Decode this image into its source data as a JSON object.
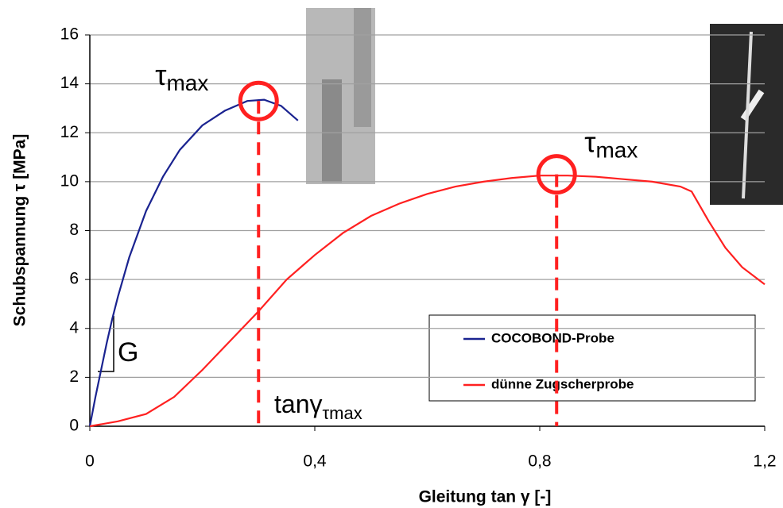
{
  "chart_data": {
    "type": "line",
    "xlabel": "Gleitung tan γ [-]",
    "ylabel": "Schubspannung τ [MPa]",
    "xlim": [
      0,
      1.2
    ],
    "xticks": [
      0,
      {
        "value": 0.4,
        "label": "0,4"
      },
      {
        "value": 0.8,
        "label": "0,8"
      },
      {
        "value": 1.2,
        "label": "1,2"
      }
    ],
    "ylim": [
      0,
      16
    ],
    "yticks": [
      0,
      2,
      4,
      6,
      8,
      10,
      12,
      14,
      16
    ],
    "grid": true,
    "series": [
      {
        "name": "COCOBOND-Probe",
        "color": "#1a2390",
        "x": [
          0,
          0.01,
          0.02,
          0.03,
          0.04,
          0.05,
          0.07,
          0.1,
          0.13,
          0.16,
          0.2,
          0.24,
          0.28,
          0.31,
          0.34,
          0.37
        ],
        "values": [
          0,
          1.2,
          2.3,
          3.4,
          4.4,
          5.3,
          6.9,
          8.8,
          10.2,
          11.3,
          12.3,
          12.9,
          13.3,
          13.35,
          13.1,
          12.5
        ]
      },
      {
        "name": "dünne Zugscherprobe",
        "color": "#ff2020",
        "x": [
          0,
          0.05,
          0.1,
          0.15,
          0.2,
          0.25,
          0.3,
          0.35,
          0.4,
          0.45,
          0.5,
          0.55,
          0.6,
          0.65,
          0.7,
          0.75,
          0.8,
          0.85,
          0.9,
          0.95,
          1.0,
          1.05,
          1.07,
          1.1,
          1.13,
          1.16,
          1.2
        ],
        "values": [
          0,
          0.2,
          0.5,
          1.2,
          2.3,
          3.5,
          4.7,
          6.0,
          7.0,
          7.9,
          8.6,
          9.1,
          9.5,
          9.8,
          10.0,
          10.15,
          10.25,
          10.25,
          10.2,
          10.1,
          10.0,
          9.8,
          9.6,
          8.4,
          7.3,
          6.5,
          5.8
        ]
      }
    ],
    "markers": [
      {
        "x": 0.3,
        "y": 13.3,
        "label": {
          "text": "τ",
          "sub": "max"
        }
      },
      {
        "x": 0.83,
        "y": 10.3,
        "label": {
          "text": "τ",
          "sub": "max"
        }
      }
    ],
    "annotations": {
      "tan": {
        "text": "tanγ",
        "sub": "τmax"
      },
      "slope": "G"
    },
    "legend": "lower-right"
  }
}
